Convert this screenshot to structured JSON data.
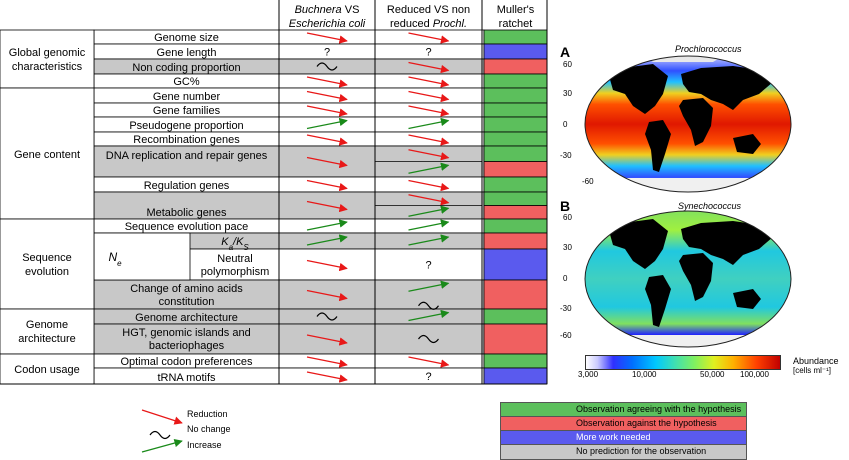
{
  "header": {
    "col1_line1": "Buchnera",
    "col1_line1_suffix": " VS",
    "col1_line2": "Escherichia coli",
    "col2_line1": "Reduced VS non",
    "col2_line2_prefix": "reduced ",
    "col2_line2": "Prochl.",
    "col3_line1": "Muller's",
    "col3_line2": "ratchet"
  },
  "categories": {
    "global": [
      "Global genomic",
      "characteristics"
    ],
    "gene_content": "Gene content",
    "sequence": [
      "Sequence",
      "evolution"
    ],
    "architecture": [
      "Genome",
      "architecture"
    ],
    "codon": "Codon usage"
  },
  "rows": [
    {
      "label": "Genome size",
      "c1": "red",
      "c2": "red",
      "m": "green"
    },
    {
      "label": "Gene length",
      "c1": "?",
      "c2": "?",
      "m": "blue"
    },
    {
      "label": "Non coding proportion",
      "c1": "~",
      "c2": "red",
      "m": "red"
    },
    {
      "label": "GC%",
      "c1": "red",
      "c2": "red",
      "m": "green"
    },
    {
      "label": "Gene number",
      "c1": "red",
      "c2": "red",
      "m": "green"
    },
    {
      "label": "Gene families",
      "c1": "red",
      "c2": "red",
      "m": "green"
    },
    {
      "label": "Pseudogene proportion",
      "c1": "green",
      "c2": "green",
      "m": "green"
    },
    {
      "label": "Recombination genes",
      "c1": "red",
      "c2": "red",
      "m": "green"
    },
    {
      "label": "DNA replication and repair genes",
      "c1": "red",
      "c2": "red/green",
      "m": "green/red"
    },
    {
      "label": "Regulation genes",
      "c1": "red",
      "c2": "red",
      "m": "green"
    },
    {
      "label": "Metabolic genes",
      "c1": "red",
      "c2": "red/green",
      "m": "green/red"
    },
    {
      "label": "Sequence evolution pace",
      "c1": "green",
      "c2": "green",
      "m": "green"
    },
    {
      "label": "Ka/Ks",
      "c1": "green",
      "c2": "green",
      "m": "red"
    },
    {
      "label": "Neutral polymorphism",
      "c1": "red",
      "c2": "?",
      "m": "blue"
    },
    {
      "label": "Change of amino acids constitution",
      "c1": "red",
      "c2": "green/~",
      "m": "red"
    },
    {
      "label": "Genome architecture",
      "c1": "~",
      "c2": "green",
      "m": "green"
    },
    {
      "label": "HGT, genomic islands and bacteriophages",
      "c1": "red",
      "c2": "~",
      "m": "red"
    },
    {
      "label": "Optimal codon preferences",
      "c1": "red",
      "c2": "red",
      "m": "green"
    },
    {
      "label": "tRNA motifs",
      "c1": "red",
      "c2": "?",
      "m": "blue"
    }
  ],
  "labels": {
    "ne": "N",
    "ne_sub": "e",
    "ka": "K",
    "ka_sub": "a",
    "ks": "K",
    "ks_sub": "S",
    "neutral_1": "Neutral",
    "neutral_2": "polymorphism",
    "dna_repl": "DNA replication and repair genes",
    "amino_1": "Change of amino acids",
    "amino_2": "constitution",
    "hgt_1": "HGT, genomic islands and",
    "hgt_2": "bacteriophages"
  },
  "arrow_legend": {
    "reduction": "Reduction",
    "no_change": "No change",
    "increase": "Increase"
  },
  "color_key": [
    {
      "color": "#5cbf5c",
      "text": "Observation agreeing with the hypothesis"
    },
    {
      "color": "#f06060",
      "text": "Observation against the hypothesis"
    },
    {
      "color": "#5a5aee",
      "text": "More work needed"
    },
    {
      "color": "#c8c8c8",
      "text": "No prediction for the observation"
    }
  ],
  "maps": {
    "a_letter": "A",
    "a_title": "Prochlorococcus",
    "b_letter": "B",
    "b_title": "Synechococcus",
    "lat_labels": [
      "60",
      "30",
      "0",
      "-30",
      "-60"
    ],
    "abundance_label": "Abundance",
    "abundance_unit": "[cells ml⁻¹]",
    "colorbar_ticks": [
      "3,000",
      "10,000",
      "50,000",
      "100,000"
    ]
  },
  "colors": {
    "red_arrow": "#e81818",
    "green_arrow": "#1a8a1a",
    "cell_green": "#5cbf5c",
    "cell_red": "#f06060",
    "cell_blue": "#5a5aee",
    "cell_gray": "#c8c8c8"
  }
}
